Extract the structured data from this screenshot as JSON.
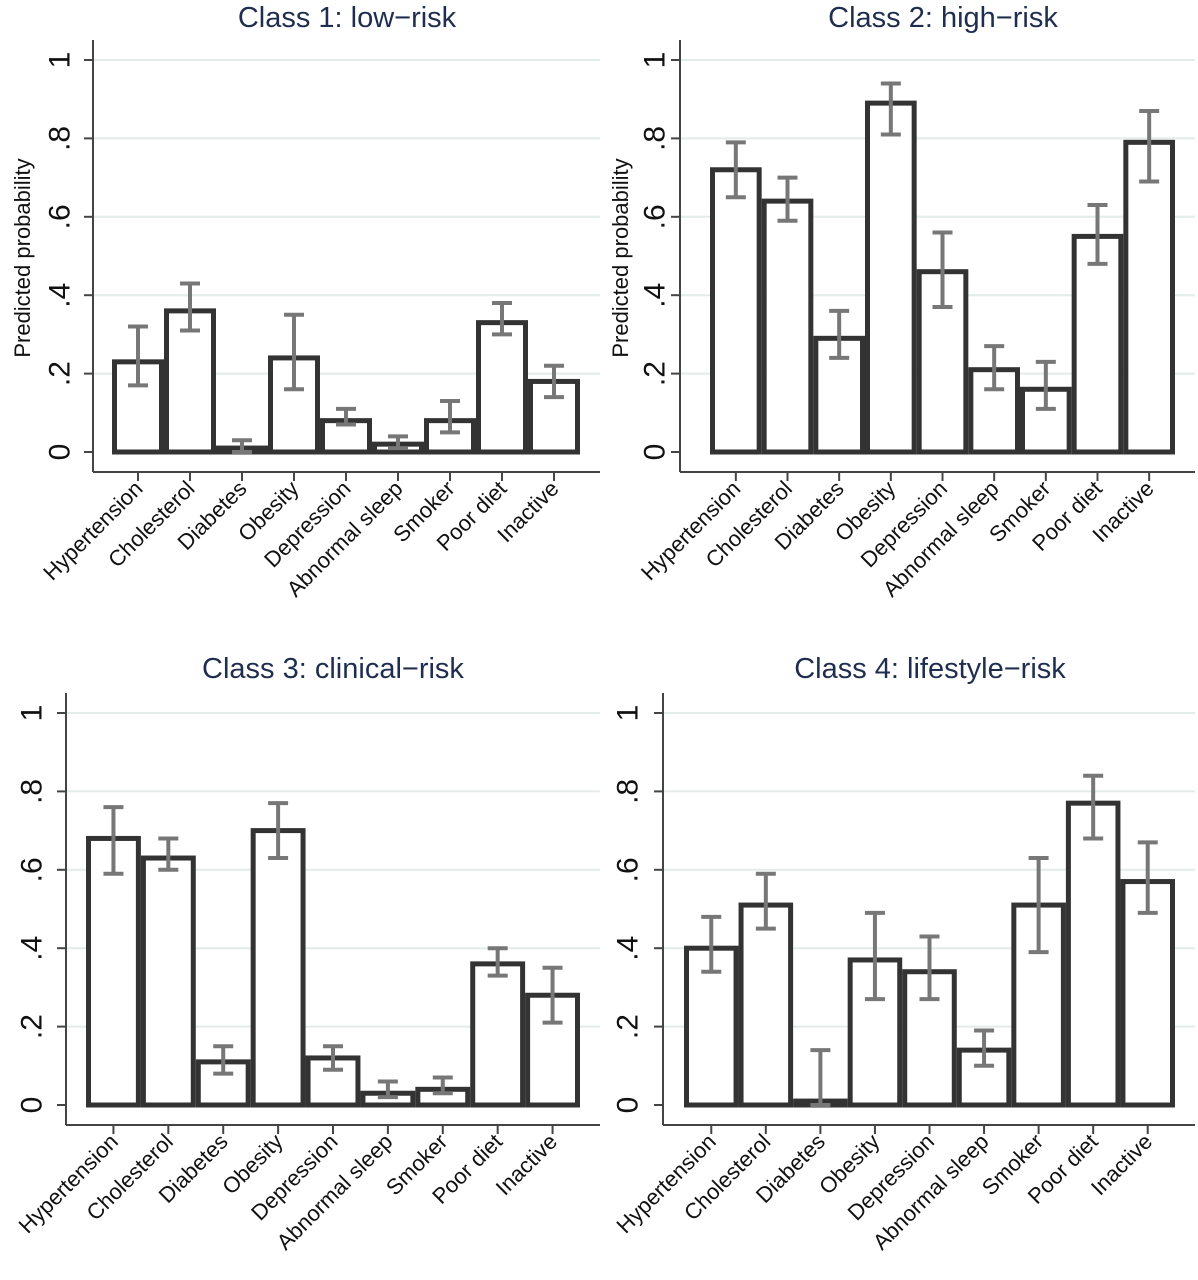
{
  "chart_data": [
    {
      "type": "bar",
      "title": "Class 1: low−risk",
      "ylabel": "Predicted probability",
      "xlabel": "",
      "ylim": [
        0,
        1
      ],
      "yticks": [
        0,
        0.2,
        0.4,
        0.6,
        0.8,
        1
      ],
      "ytick_labels": [
        "0",
        ".2",
        ".4",
        ".6",
        ".8",
        "1"
      ],
      "grid": true,
      "categories": [
        "Hypertension",
        "Cholesterol",
        "Diabetes",
        "Obesity",
        "Depression",
        "Abnormal sleep",
        "Smoker",
        "Poor diet",
        "Inactive"
      ],
      "values": [
        0.23,
        0.36,
        0.01,
        0.24,
        0.08,
        0.02,
        0.08,
        0.33,
        0.18
      ],
      "ci_low": [
        0.17,
        0.31,
        0.0,
        0.16,
        0.07,
        0.01,
        0.05,
        0.3,
        0.14
      ],
      "ci_high": [
        0.32,
        0.43,
        0.03,
        0.35,
        0.11,
        0.04,
        0.13,
        0.38,
        0.22
      ]
    },
    {
      "type": "bar",
      "title": "Class 2: high−risk",
      "ylabel": "Predicted probability",
      "xlabel": "",
      "ylim": [
        0,
        1
      ],
      "yticks": [
        0,
        0.2,
        0.4,
        0.6,
        0.8,
        1
      ],
      "ytick_labels": [
        "0",
        ".2",
        ".4",
        ".6",
        ".8",
        "1"
      ],
      "grid": true,
      "categories": [
        "Hypertension",
        "Cholesterol",
        "Diabetes",
        "Obesity",
        "Depression",
        "Abnormal sleep",
        "Smoker",
        "Poor diet",
        "Inactive"
      ],
      "values": [
        0.72,
        0.64,
        0.29,
        0.89,
        0.46,
        0.21,
        0.16,
        0.55,
        0.79
      ],
      "ci_low": [
        0.65,
        0.59,
        0.24,
        0.81,
        0.37,
        0.16,
        0.11,
        0.48,
        0.69
      ],
      "ci_high": [
        0.79,
        0.7,
        0.36,
        0.94,
        0.56,
        0.27,
        0.23,
        0.63,
        0.87
      ]
    },
    {
      "type": "bar",
      "title": "Class 3: clinical−risk",
      "ylabel": "",
      "xlabel": "",
      "ylim": [
        0,
        1
      ],
      "yticks": [
        0,
        0.2,
        0.4,
        0.6,
        0.8,
        1
      ],
      "ytick_labels": [
        "0",
        ".2",
        ".4",
        ".6",
        ".8",
        "1"
      ],
      "grid": true,
      "categories": [
        "Hypertension",
        "Cholesterol",
        "Diabetes",
        "Obesity",
        "Depression",
        "Abnormal sleep",
        "Smoker",
        "Poor diet",
        "Inactive"
      ],
      "values": [
        0.68,
        0.63,
        0.11,
        0.7,
        0.12,
        0.03,
        0.04,
        0.36,
        0.28
      ],
      "ci_low": [
        0.59,
        0.6,
        0.08,
        0.63,
        0.09,
        0.02,
        0.03,
        0.33,
        0.21
      ],
      "ci_high": [
        0.76,
        0.68,
        0.15,
        0.77,
        0.15,
        0.06,
        0.07,
        0.4,
        0.35
      ]
    },
    {
      "type": "bar",
      "title": "Class 4: lifestyle−risk",
      "ylabel": "",
      "xlabel": "",
      "ylim": [
        0,
        1
      ],
      "yticks": [
        0,
        0.2,
        0.4,
        0.6,
        0.8,
        1
      ],
      "ytick_labels": [
        "0",
        ".2",
        ".4",
        ".6",
        ".8",
        "1"
      ],
      "grid": true,
      "categories": [
        "Hypertension",
        "Cholesterol",
        "Diabetes",
        "Obesity",
        "Depression",
        "Abnormal sleep",
        "Smoker",
        "Poor diet",
        "Inactive"
      ],
      "values": [
        0.4,
        0.51,
        0.01,
        0.37,
        0.34,
        0.14,
        0.51,
        0.77,
        0.57
      ],
      "ci_low": [
        0.34,
        0.45,
        0.0,
        0.27,
        0.27,
        0.1,
        0.39,
        0.68,
        0.49
      ],
      "ci_high": [
        0.48,
        0.59,
        0.14,
        0.49,
        0.43,
        0.19,
        0.63,
        0.84,
        0.67
      ]
    }
  ],
  "colors": {
    "bar_fill": "#ffffff",
    "bar_edge": "#333333",
    "error_bar": "#777777",
    "grid": "#e3ece9",
    "axis": "#444444",
    "title": "#1f2d4f"
  }
}
